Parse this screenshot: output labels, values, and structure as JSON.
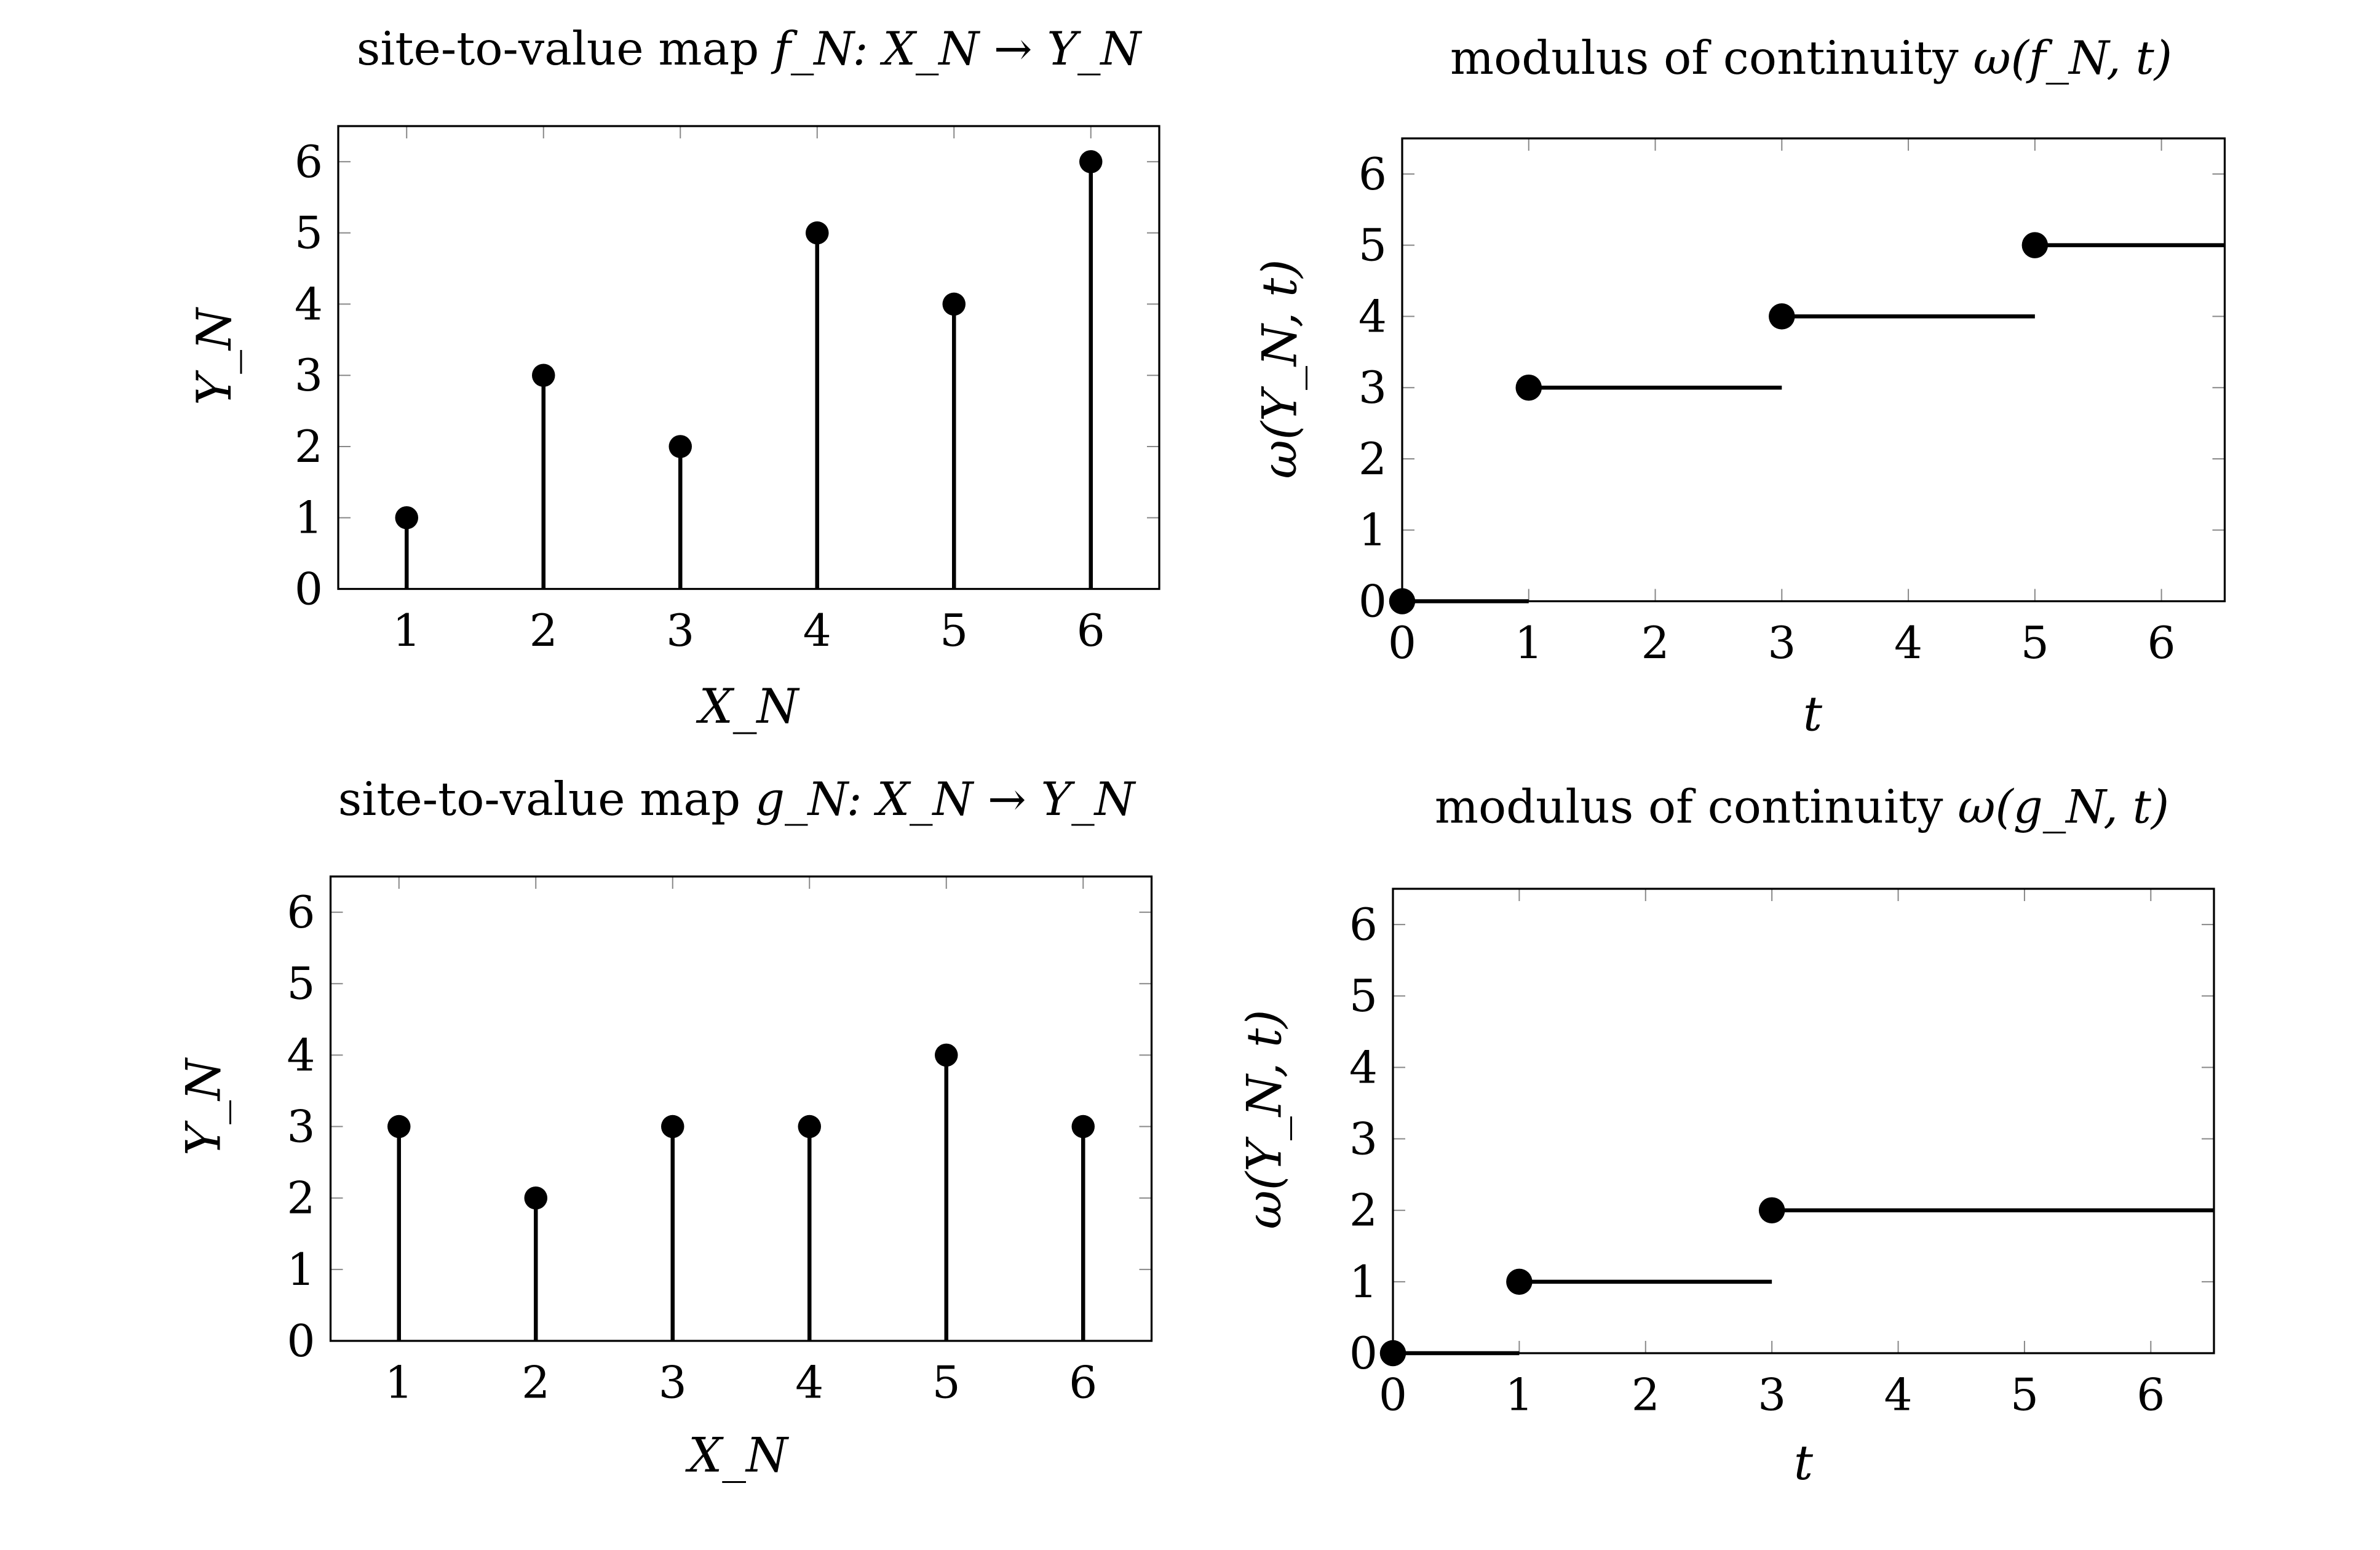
{
  "chart_data": [
    {
      "id": "fN-map",
      "type": "stem",
      "title": {
        "text": "site-to-value map ",
        "math": "f_N: X_N → Y_N"
      },
      "xlabel": "X_N",
      "ylabel": "Y_N",
      "xlim": [
        0.5,
        6.5
      ],
      "ylim": [
        0,
        6.5
      ],
      "xticks": [
        1,
        2,
        3,
        4,
        5,
        6
      ],
      "yticks": [
        0,
        1,
        2,
        3,
        4,
        5,
        6
      ],
      "x": [
        1,
        2,
        3,
        4,
        5,
        6
      ],
      "y": [
        1,
        3,
        2,
        5,
        4,
        6
      ]
    },
    {
      "id": "fN-modulus",
      "type": "step",
      "title": {
        "text": "modulus of continuity ",
        "math": "ω(f_N, t)"
      },
      "xlabel": "t",
      "ylabel": "ω(Y_N, t)",
      "xlim": [
        0,
        6.5
      ],
      "ylim": [
        0,
        6.5
      ],
      "xticks": [
        0,
        1,
        2,
        3,
        4,
        5,
        6
      ],
      "yticks": [
        0,
        1,
        2,
        3,
        4,
        5,
        6
      ],
      "segments": [
        {
          "start": 0,
          "end": 1,
          "value": 0
        },
        {
          "start": 1,
          "end": 3,
          "value": 3
        },
        {
          "start": 3,
          "end": 5,
          "value": 4
        },
        {
          "start": 5,
          "end": 6.5,
          "value": 5
        }
      ]
    },
    {
      "id": "gN-map",
      "type": "stem",
      "title": {
        "text": "site-to-value map ",
        "math": "g_N: X_N → Y_N"
      },
      "xlabel": "X_N",
      "ylabel": "Y_N",
      "xlim": [
        0.5,
        6.5
      ],
      "ylim": [
        0,
        6.5
      ],
      "xticks": [
        1,
        2,
        3,
        4,
        5,
        6
      ],
      "yticks": [
        0,
        1,
        2,
        3,
        4,
        5,
        6
      ],
      "x": [
        1,
        2,
        3,
        4,
        5,
        6
      ],
      "y": [
        3,
        2,
        3,
        3,
        4,
        3
      ]
    },
    {
      "id": "gN-modulus",
      "type": "step",
      "title": {
        "text": "modulus of continuity ",
        "math": "ω(g_N, t)"
      },
      "xlabel": "t",
      "ylabel": "ω(Y_N, t)",
      "xlim": [
        0,
        6.5
      ],
      "ylim": [
        0,
        6.5
      ],
      "xticks": [
        0,
        1,
        2,
        3,
        4,
        5,
        6
      ],
      "yticks": [
        0,
        1,
        2,
        3,
        4,
        5,
        6
      ],
      "segments": [
        {
          "start": 0,
          "end": 1,
          "value": 0
        },
        {
          "start": 1,
          "end": 3,
          "value": 1
        },
        {
          "start": 3,
          "end": 6.5,
          "value": 2
        }
      ]
    }
  ]
}
